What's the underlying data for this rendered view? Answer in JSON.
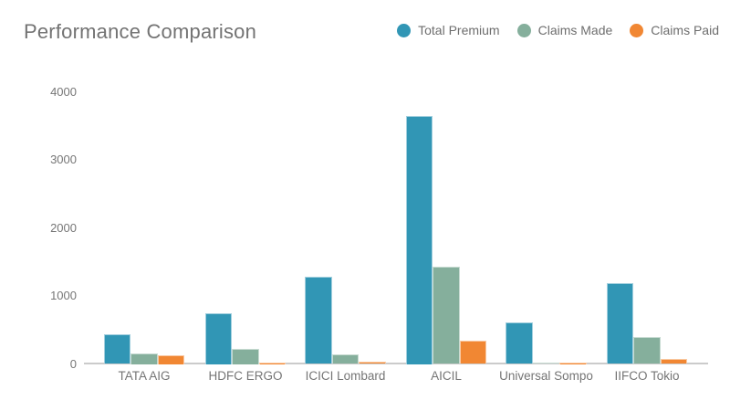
{
  "chart_data": {
    "type": "bar",
    "title": "Performance Comparison",
    "categories": [
      "TATA AIG",
      "HDFC ERGO",
      "ICICI Lombard",
      "AICIL",
      "Universal Sompo",
      "IIFCO Tokio"
    ],
    "series": [
      {
        "name": "Total Premium",
        "color": "#3196b5",
        "values": [
          440,
          750,
          1290,
          3650,
          610,
          1190
        ]
      },
      {
        "name": "Claims Made",
        "color": "#85af9c",
        "values": [
          150,
          225,
          140,
          1430,
          15,
          390
        ]
      },
      {
        "name": "Claims Paid",
        "color": "#f18733",
        "values": [
          125,
          25,
          35,
          340,
          25,
          70
        ]
      }
    ],
    "xlabel": "",
    "ylabel": "",
    "ylim": [
      0,
      4000
    ],
    "yticks": [
      0,
      1000,
      2000,
      3000,
      4000
    ],
    "grid": false,
    "legend_position": "top-right",
    "colors": {
      "background": "#ffffff",
      "title_text": "#737373",
      "axis_text": "#767676",
      "axis_line": "#cbcbcb"
    }
  }
}
